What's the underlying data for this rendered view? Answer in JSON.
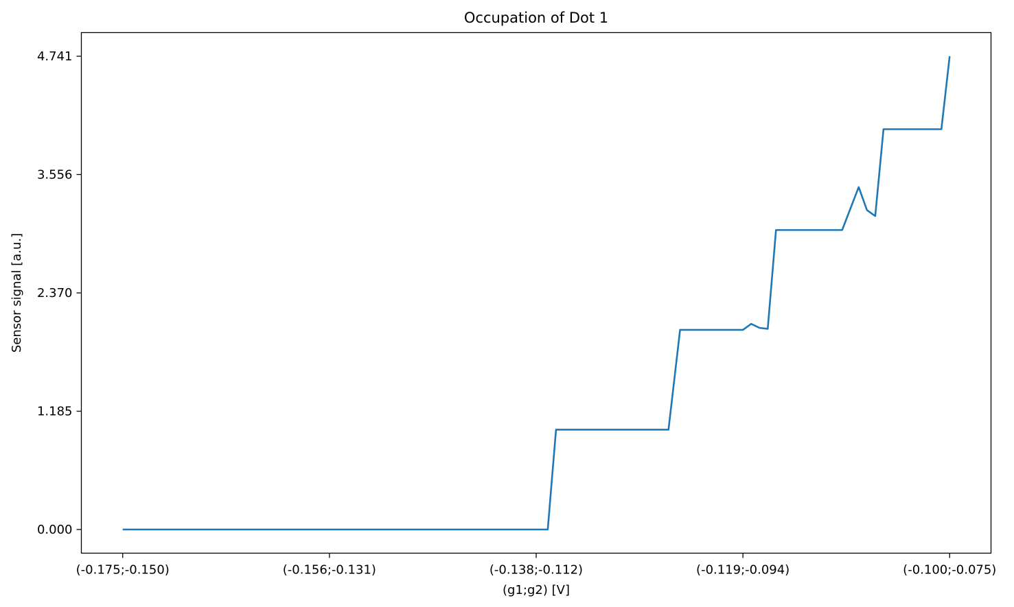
{
  "chart_data": {
    "type": "line",
    "title": "Occupation of Dot 1",
    "xlabel": "(g1;g2) [V]",
    "ylabel": "Sensor signal [a.u.]",
    "x_tick_labels": [
      "(-0.175;-0.150)",
      "(-0.156;-0.131)",
      "(-0.138;-0.112)",
      "(-0.119;-0.094)",
      "(-0.100;-0.075)"
    ],
    "y_tick_labels": [
      "0.000",
      "1.185",
      "2.370",
      "3.556",
      "4.741"
    ],
    "y_ticks": [
      0.0,
      1.185,
      2.37,
      3.556,
      4.741
    ],
    "xlim": [
      -0.05,
      1.05
    ],
    "ylim": [
      -0.237,
      4.978
    ],
    "grid": false,
    "legend": false,
    "color": "#1f77b4",
    "series": [
      {
        "x": [
          0.0,
          0.2,
          0.4,
          0.514,
          0.524,
          0.6,
          0.65,
          0.66,
          0.674,
          0.75,
          0.76,
          0.77,
          0.78,
          0.79,
          0.8,
          0.81,
          0.87,
          0.89,
          0.9,
          0.91,
          0.92,
          0.93,
          0.93,
          0.99,
          1.0
        ],
        "values": [
          0.0,
          0.0,
          0.0,
          0.0,
          1.0,
          1.0,
          1.0,
          1.0,
          2.0,
          2.0,
          2.06,
          2.02,
          2.01,
          3.0,
          3.0,
          3.0,
          3.0,
          3.43,
          3.2,
          3.14,
          4.01,
          4.01,
          4.01,
          4.01,
          4.741
        ]
      }
    ]
  }
}
